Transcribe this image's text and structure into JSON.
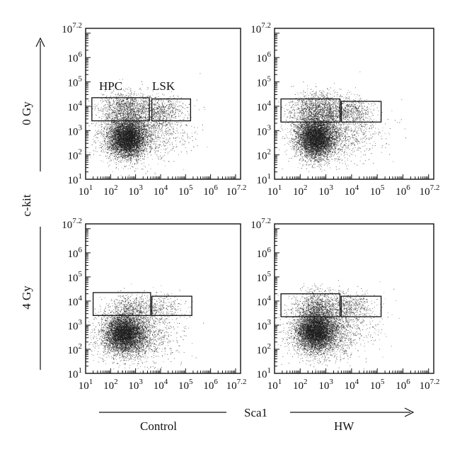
{
  "chart_data": {
    "type": "scatter",
    "x_axis_label": "Sca1",
    "y_axis_label": "c-kit",
    "scale": "log10",
    "xlim": [
      1,
      7.2
    ],
    "ylim": [
      1,
      7.2
    ],
    "tick_labels": [
      {
        "base": "10",
        "exp": "1"
      },
      {
        "base": "10",
        "exp": "2"
      },
      {
        "base": "10",
        "exp": "3"
      },
      {
        "base": "10",
        "exp": "4"
      },
      {
        "base": "10",
        "exp": "5"
      },
      {
        "base": "10",
        "exp": "6"
      },
      {
        "base": "10",
        "exp": "7.2"
      }
    ],
    "columns": [
      "Control",
      "HW"
    ],
    "rows": [
      "0 Gy",
      "4 Gy"
    ],
    "gates": [
      {
        "label": "HPC",
        "x": [
          1.25,
          3.55
        ]
      },
      {
        "label": "LSK",
        "x": [
          3.6,
          5.2
        ]
      }
    ],
    "panels": [
      {
        "row": "0 Gy",
        "column": "Control",
        "gates": [
          {
            "label": "HPC",
            "x": [
              1.25,
              3.55
            ],
            "y": [
              3.4,
              4.35
            ]
          },
          {
            "label": "LSK",
            "x": [
              3.65,
              5.2
            ],
            "y": [
              3.4,
              4.3
            ]
          }
        ],
        "clusters": [
          {
            "name": "main",
            "center": [
              2.65,
              2.7
            ],
            "spread": [
              0.38,
              0.4
            ],
            "count": 5500
          },
          {
            "name": "hpc",
            "center": [
              2.6,
              3.9
            ],
            "spread": [
              0.55,
              0.35
            ],
            "count": 1200
          },
          {
            "name": "lsk",
            "center": [
              4.1,
              3.8
            ],
            "spread": [
              0.45,
              0.3
            ],
            "count": 500
          },
          {
            "name": "diffuse",
            "center": [
              3.3,
              3.0
            ],
            "spread": [
              0.9,
              0.6
            ],
            "count": 1300
          }
        ]
      },
      {
        "row": "0 Gy",
        "column": "HW",
        "gates": [
          {
            "label": "HPC",
            "x": [
              1.25,
              3.55
            ],
            "y": [
              3.35,
              4.3
            ]
          },
          {
            "label": "LSK",
            "x": [
              3.6,
              5.15
            ],
            "y": [
              3.35,
              4.2
            ]
          }
        ],
        "clusters": [
          {
            "name": "main",
            "center": [
              2.6,
              2.7
            ],
            "spread": [
              0.38,
              0.42
            ],
            "count": 5500
          },
          {
            "name": "hpc",
            "center": [
              2.7,
              3.9
            ],
            "spread": [
              0.55,
              0.35
            ],
            "count": 1300
          },
          {
            "name": "lsk",
            "center": [
              4.0,
              3.8
            ],
            "spread": [
              0.45,
              0.3
            ],
            "count": 500
          },
          {
            "name": "diffuse",
            "center": [
              3.3,
              3.0
            ],
            "spread": [
              0.9,
              0.6
            ],
            "count": 1300
          }
        ]
      },
      {
        "row": "4 Gy",
        "column": "Control",
        "gates": [
          {
            "label": "HPC",
            "x": [
              1.3,
              3.6
            ],
            "y": [
              3.4,
              4.35
            ]
          },
          {
            "label": "LSK",
            "x": [
              3.65,
              5.25
            ],
            "y": [
              3.4,
              4.2
            ]
          }
        ],
        "clusters": [
          {
            "name": "main",
            "center": [
              2.55,
              2.65
            ],
            "spread": [
              0.4,
              0.4
            ],
            "count": 5000
          },
          {
            "name": "hpc",
            "center": [
              2.8,
              3.7
            ],
            "spread": [
              0.45,
              0.3
            ],
            "count": 500
          },
          {
            "name": "lsk",
            "center": [
              4.0,
              3.7
            ],
            "spread": [
              0.45,
              0.3
            ],
            "count": 300
          },
          {
            "name": "diffuse",
            "center": [
              3.0,
              2.6
            ],
            "spread": [
              0.8,
              0.6
            ],
            "count": 1500
          }
        ]
      },
      {
        "row": "4 Gy",
        "column": "HW",
        "gates": [
          {
            "label": "HPC",
            "x": [
              1.25,
              3.55
            ],
            "y": [
              3.35,
              4.3
            ]
          },
          {
            "label": "LSK",
            "x": [
              3.6,
              5.15
            ],
            "y": [
              3.35,
              4.2
            ]
          }
        ],
        "clusters": [
          {
            "name": "main",
            "center": [
              2.6,
              2.75
            ],
            "spread": [
              0.38,
              0.42
            ],
            "count": 5500
          },
          {
            "name": "hpc",
            "center": [
              2.7,
              3.8
            ],
            "spread": [
              0.5,
              0.35
            ],
            "count": 900
          },
          {
            "name": "lsk",
            "center": [
              4.0,
              3.8
            ],
            "spread": [
              0.45,
              0.3
            ],
            "count": 450
          },
          {
            "name": "diffuse",
            "center": [
              3.1,
              2.8
            ],
            "spread": [
              0.8,
              0.6
            ],
            "count": 1500
          }
        ]
      }
    ],
    "colors": {
      "points": "#1a1a1a",
      "axes": "#111111",
      "background": "#ffffff"
    }
  }
}
